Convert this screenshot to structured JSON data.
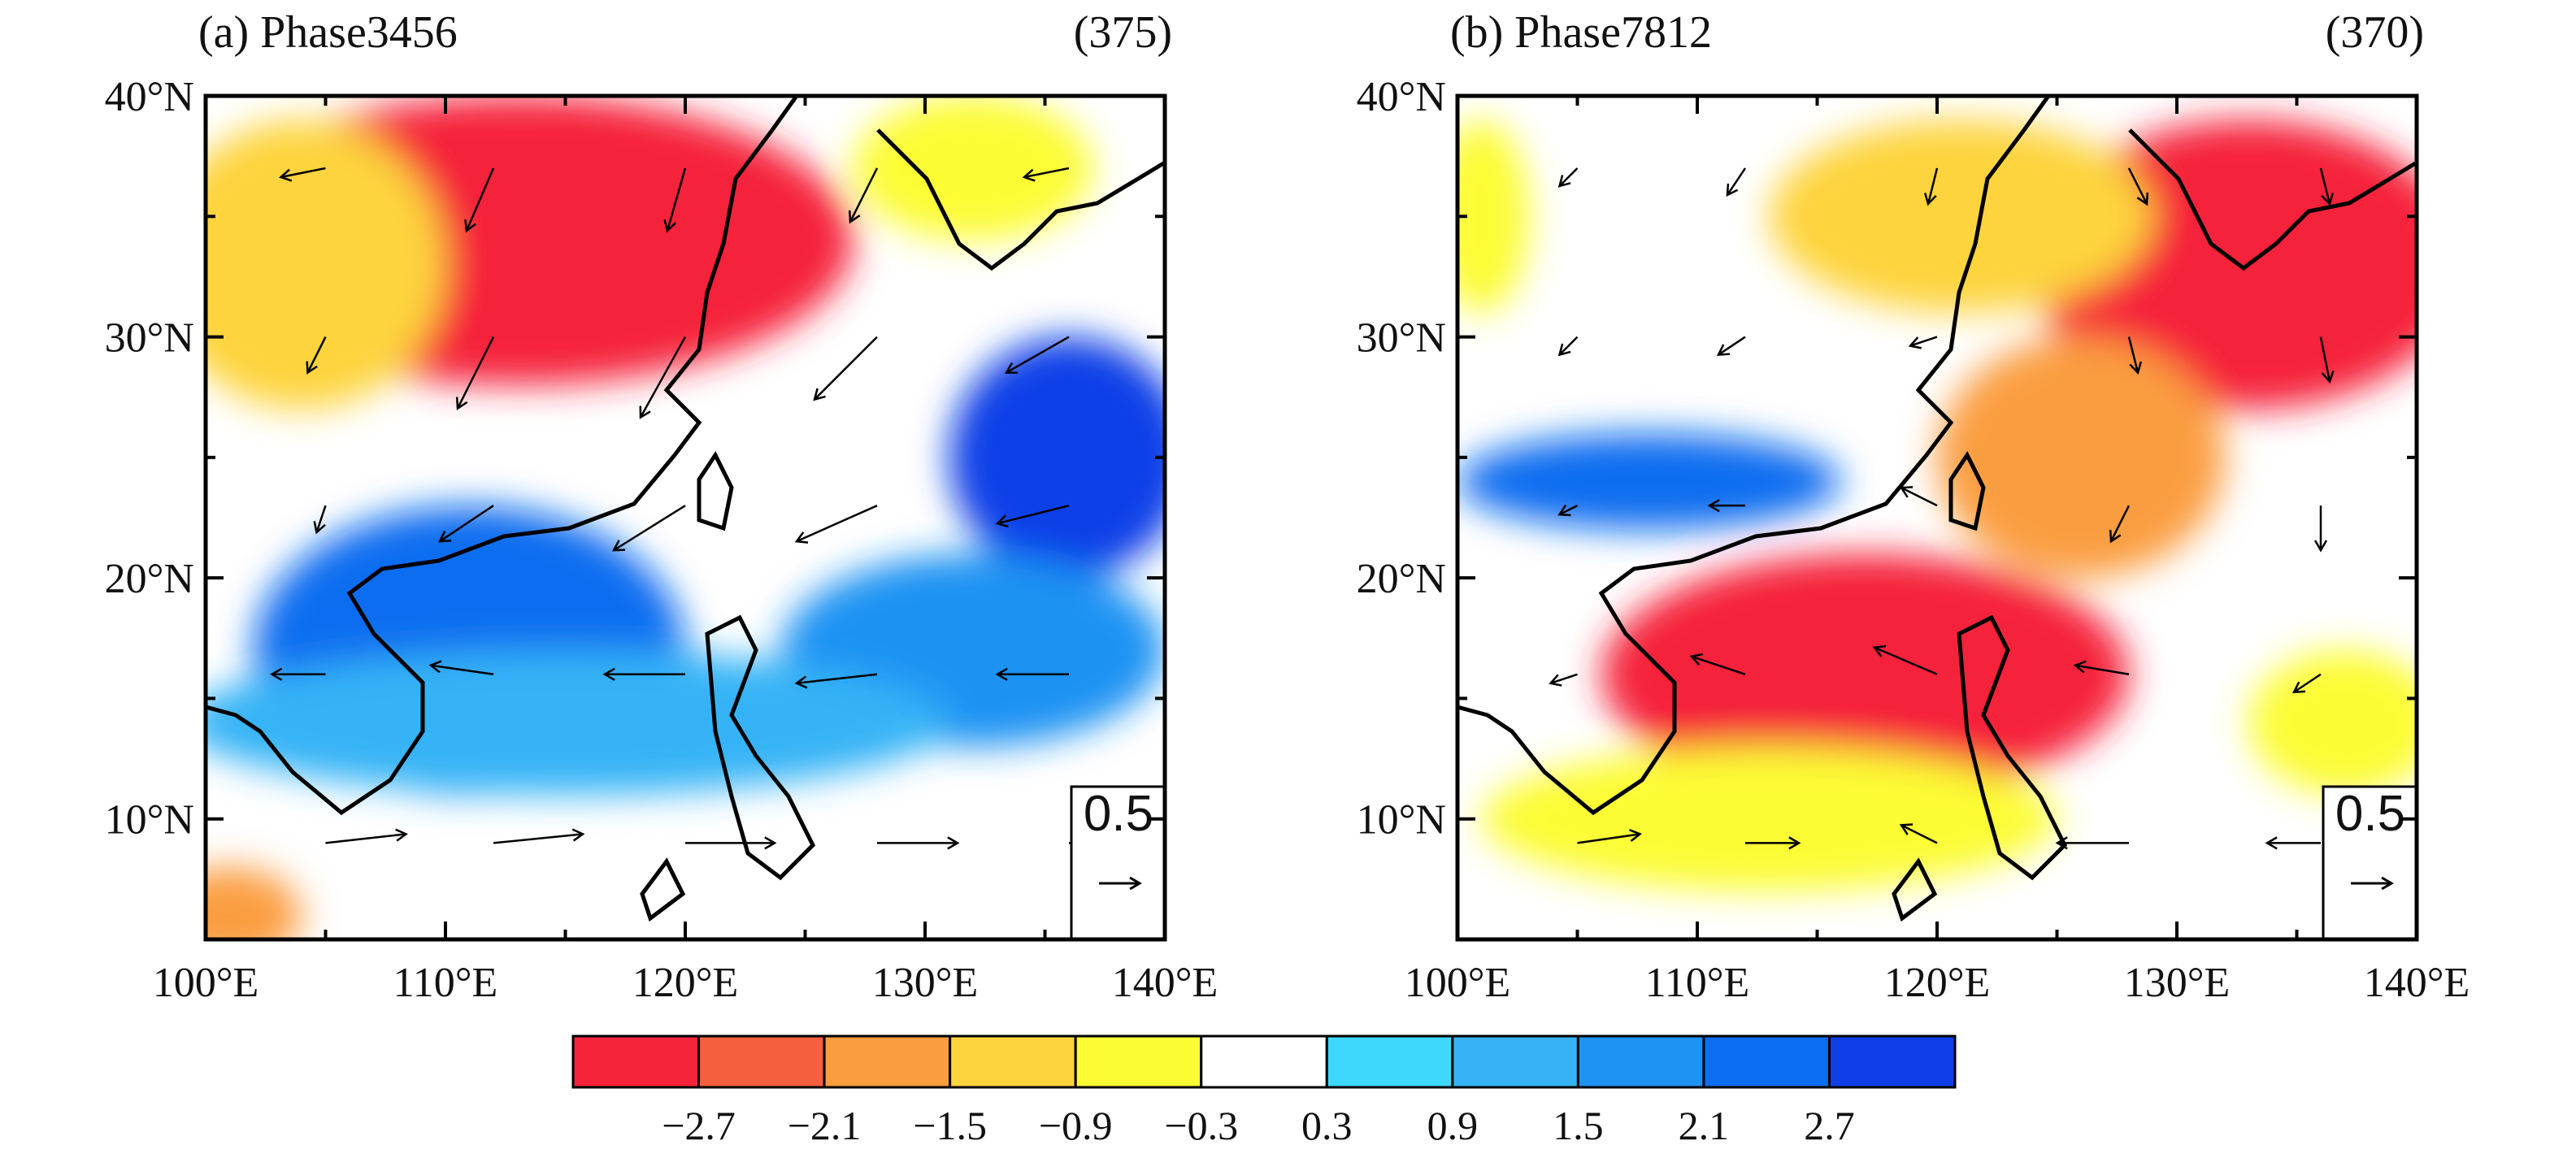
{
  "panels": [
    {
      "title": "(a) Phase3456",
      "count": "(375)",
      "ref_vector": "0.5",
      "blobs": [
        {
          "lon": 113,
          "lat": 34,
          "rx": 14,
          "ry": 6,
          "v": -3.0
        },
        {
          "lon": 104,
          "lat": 33,
          "rx": 6,
          "ry": 6,
          "v": -1.4
        },
        {
          "lon": 132,
          "lat": 37,
          "rx": 5,
          "ry": 3,
          "v": -0.7
        },
        {
          "lon": 136,
          "lat": 25,
          "rx": 5,
          "ry": 5,
          "v": 2.9
        },
        {
          "lon": 132,
          "lat": 17,
          "rx": 8,
          "ry": 4,
          "v": 1.6
        },
        {
          "lon": 111,
          "lat": 17,
          "rx": 9,
          "ry": 6,
          "v": 2.2
        },
        {
          "lon": 115,
          "lat": 14,
          "rx": 16,
          "ry": 3,
          "v": 1.4
        },
        {
          "lon": 101,
          "lat": 6,
          "rx": 3,
          "ry": 2,
          "v": -1.6
        }
      ],
      "vectors": [
        {
          "lon": 105,
          "lat": 37,
          "u": -0.25,
          "v": -0.05
        },
        {
          "lon": 112,
          "lat": 37,
          "u": -0.15,
          "v": -0.35
        },
        {
          "lon": 120,
          "lat": 37,
          "u": -0.1,
          "v": -0.35
        },
        {
          "lon": 128,
          "lat": 37,
          "u": -0.15,
          "v": -0.3
        },
        {
          "lon": 136,
          "lat": 37,
          "u": -0.25,
          "v": -0.05
        },
        {
          "lon": 105,
          "lat": 30,
          "u": -0.1,
          "v": -0.2
        },
        {
          "lon": 112,
          "lat": 30,
          "u": -0.2,
          "v": -0.4
        },
        {
          "lon": 120,
          "lat": 30,
          "u": -0.25,
          "v": -0.45
        },
        {
          "lon": 128,
          "lat": 30,
          "u": -0.35,
          "v": -0.35
        },
        {
          "lon": 136,
          "lat": 30,
          "u": -0.35,
          "v": -0.2
        },
        {
          "lon": 105,
          "lat": 23,
          "u": -0.05,
          "v": -0.15
        },
        {
          "lon": 112,
          "lat": 23,
          "u": -0.3,
          "v": -0.2
        },
        {
          "lon": 120,
          "lat": 23,
          "u": -0.4,
          "v": -0.25
        },
        {
          "lon": 128,
          "lat": 23,
          "u": -0.45,
          "v": -0.2
        },
        {
          "lon": 136,
          "lat": 23,
          "u": -0.4,
          "v": -0.1
        },
        {
          "lon": 105,
          "lat": 16,
          "u": -0.3,
          "v": 0.0
        },
        {
          "lon": 112,
          "lat": 16,
          "u": -0.35,
          "v": 0.05
        },
        {
          "lon": 120,
          "lat": 16,
          "u": -0.45,
          "v": 0.0
        },
        {
          "lon": 128,
          "lat": 16,
          "u": -0.45,
          "v": -0.05
        },
        {
          "lon": 136,
          "lat": 16,
          "u": -0.4,
          "v": 0.0
        },
        {
          "lon": 105,
          "lat": 9,
          "u": 0.45,
          "v": 0.05
        },
        {
          "lon": 112,
          "lat": 9,
          "u": 0.5,
          "v": 0.05
        },
        {
          "lon": 120,
          "lat": 9,
          "u": 0.5,
          "v": 0.0
        },
        {
          "lon": 128,
          "lat": 9,
          "u": 0.45,
          "v": 0.0
        },
        {
          "lon": 136,
          "lat": 9,
          "u": 0.35,
          "v": 0.0
        }
      ]
    },
    {
      "title": "(b) Phase7812",
      "count": "(370)",
      "ref_vector": "0.5",
      "blobs": [
        {
          "lon": 133,
          "lat": 33,
          "rx": 9,
          "ry": 6,
          "v": -2.9
        },
        {
          "lon": 117,
          "lat": 16,
          "rx": 11,
          "ry": 5,
          "v": -2.9
        },
        {
          "lon": 126,
          "lat": 25,
          "rx": 6,
          "ry": 5,
          "v": -2.0
        },
        {
          "lon": 121,
          "lat": 35,
          "rx": 8,
          "ry": 4,
          "v": -1.4
        },
        {
          "lon": 113,
          "lat": 10,
          "rx": 12,
          "ry": 3,
          "v": -0.7
        },
        {
          "lon": 137,
          "lat": 14,
          "rx": 4,
          "ry": 3,
          "v": -0.7
        },
        {
          "lon": 101,
          "lat": 35,
          "rx": 2,
          "ry": 4,
          "v": -0.5
        },
        {
          "lon": 108,
          "lat": 24,
          "rx": 8,
          "ry": 2,
          "v": 2.1
        }
      ],
      "vectors": [
        {
          "lon": 105,
          "lat": 37,
          "u": -0.1,
          "v": -0.1
        },
        {
          "lon": 112,
          "lat": 37,
          "u": -0.1,
          "v": -0.15
        },
        {
          "lon": 120,
          "lat": 37,
          "u": -0.05,
          "v": -0.2
        },
        {
          "lon": 128,
          "lat": 37,
          "u": 0.1,
          "v": -0.2
        },
        {
          "lon": 136,
          "lat": 37,
          "u": 0.05,
          "v": -0.2
        },
        {
          "lon": 105,
          "lat": 30,
          "u": -0.1,
          "v": -0.1
        },
        {
          "lon": 112,
          "lat": 30,
          "u": -0.15,
          "v": -0.1
        },
        {
          "lon": 120,
          "lat": 30,
          "u": -0.15,
          "v": -0.05
        },
        {
          "lon": 128,
          "lat": 30,
          "u": 0.05,
          "v": -0.2
        },
        {
          "lon": 136,
          "lat": 30,
          "u": 0.05,
          "v": -0.25
        },
        {
          "lon": 105,
          "lat": 23,
          "u": -0.1,
          "v": -0.05
        },
        {
          "lon": 112,
          "lat": 23,
          "u": -0.2,
          "v": 0.0
        },
        {
          "lon": 120,
          "lat": 23,
          "u": -0.2,
          "v": 0.1
        },
        {
          "lon": 128,
          "lat": 23,
          "u": -0.1,
          "v": -0.2
        },
        {
          "lon": 136,
          "lat": 23,
          "u": 0.0,
          "v": -0.25
        },
        {
          "lon": 105,
          "lat": 16,
          "u": -0.15,
          "v": -0.05
        },
        {
          "lon": 112,
          "lat": 16,
          "u": -0.3,
          "v": 0.1
        },
        {
          "lon": 120,
          "lat": 16,
          "u": -0.35,
          "v": 0.15
        },
        {
          "lon": 128,
          "lat": 16,
          "u": -0.3,
          "v": 0.05
        },
        {
          "lon": 136,
          "lat": 16,
          "u": -0.15,
          "v": -0.1
        },
        {
          "lon": 105,
          "lat": 9,
          "u": 0.35,
          "v": 0.05
        },
        {
          "lon": 112,
          "lat": 9,
          "u": 0.3,
          "v": 0.0
        },
        {
          "lon": 120,
          "lat": 9,
          "u": -0.2,
          "v": 0.1
        },
        {
          "lon": 128,
          "lat": 9,
          "u": -0.4,
          "v": 0.0
        },
        {
          "lon": 136,
          "lat": 9,
          "u": -0.3,
          "v": 0.0
        }
      ]
    }
  ],
  "axes": {
    "lon_ticks": [
      "100°E",
      "110°E",
      "120°E",
      "130°E",
      "140°E"
    ],
    "lat_ticks": [
      "10°N",
      "20°N",
      "30°N",
      "40°N"
    ],
    "lon_range": [
      100,
      140
    ],
    "lat_range": [
      5,
      40
    ]
  },
  "colorbar": {
    "labels": [
      "−2.7",
      "−2.1",
      "−1.5",
      "−0.9",
      "−0.3",
      "0.3",
      "0.9",
      "1.5",
      "2.1",
      "2.7"
    ],
    "colors": [
      "#f5243b",
      "#f65f3e",
      "#fa9d3f",
      "#fdd43c",
      "#fcfc34",
      "#ffffff",
      "#3dd8fb",
      "#35b3f6",
      "#1e93f3",
      "#0b6df0",
      "#0f3fe7"
    ]
  }
}
